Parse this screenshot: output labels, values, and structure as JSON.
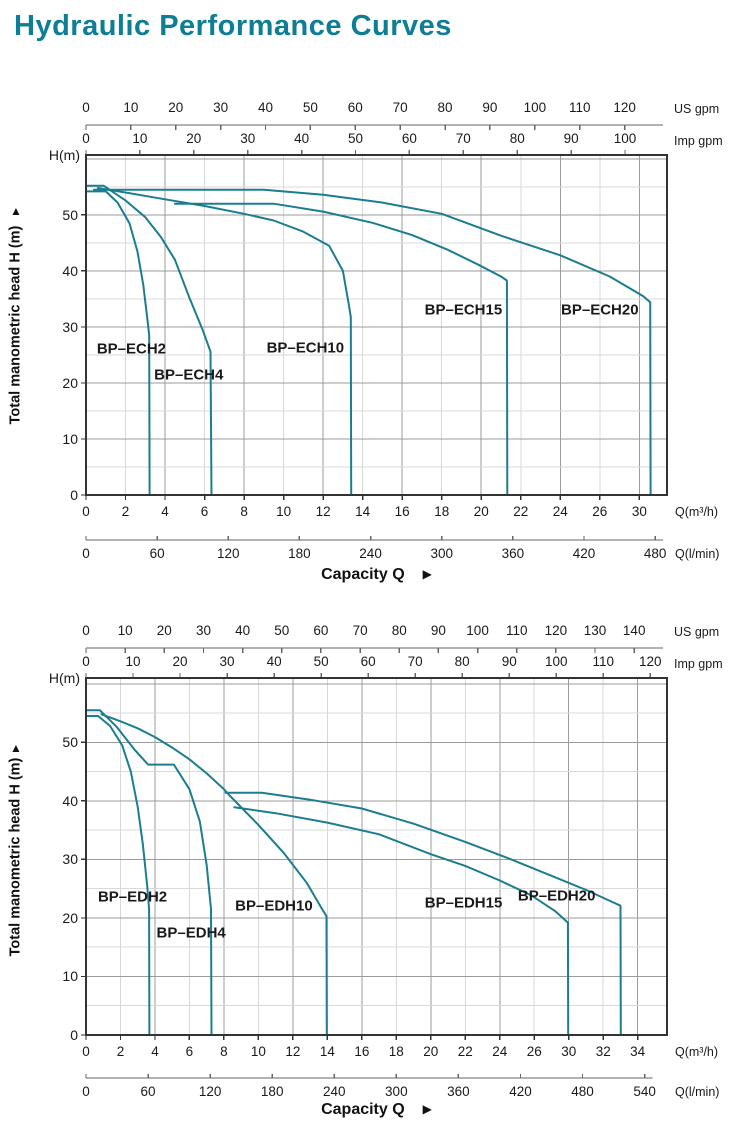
{
  "page": {
    "title": "Hydraulic Performance Curves"
  },
  "colors": {
    "title_accent": "#0e7e94",
    "curve": "#1b7d8f",
    "text": "#1a1a1a"
  },
  "chart_data": [
    {
      "type": "line",
      "name": "BP-ECH series",
      "y_axis_label": "Total manometric head H (m)",
      "h_label": "H(m)",
      "capacity_label": "Capacity Q",
      "xlim": [
        0,
        29.4
      ],
      "ylim": [
        0,
        60.7
      ],
      "y_ticks": [
        0,
        10,
        20,
        30,
        40,
        50
      ],
      "us_gpm": {
        "values": [
          0,
          10,
          20,
          30,
          40,
          50,
          60,
          70,
          80,
          90,
          100,
          110,
          120
        ],
        "unit": "US gpm"
      },
      "imp_gpm": {
        "values": [
          0,
          10,
          20,
          30,
          40,
          50,
          60,
          70,
          80,
          90,
          100
        ],
        "unit": "Imp gpm"
      },
      "m3h": {
        "labels": [
          "0",
          "2",
          "4",
          "6",
          "8",
          "10",
          "12",
          "14",
          "16",
          "18",
          "20",
          "22",
          "24",
          "26",
          "30"
        ],
        "unit": "Q(m³/h)"
      },
      "lmin": {
        "values": [
          0,
          60,
          120,
          180,
          240,
          300,
          360,
          420,
          480
        ],
        "unit": "Q(l/min)"
      },
      "curves": [
        {
          "label": "BP–ECH2",
          "label_pos": [
            2.3,
            26.0
          ],
          "points": [
            [
              0,
              54.2
            ],
            [
              1.0,
              54.2
            ],
            [
              1.6,
              52.2
            ],
            [
              2.2,
              48.5
            ],
            [
              2.6,
              43.5
            ],
            [
              2.9,
              37.5
            ],
            [
              3.1,
              31.5
            ],
            [
              3.2,
              28.5
            ],
            [
              3.22,
              0
            ]
          ]
        },
        {
          "label": "BP–ECH4",
          "label_pos": [
            5.2,
            21.5
          ],
          "points": [
            [
              0,
              55.2
            ],
            [
              0.9,
              55.2
            ],
            [
              2,
              52.6
            ],
            [
              3,
              49.6
            ],
            [
              3.8,
              46
            ],
            [
              4.5,
              42
            ],
            [
              5.2,
              35.5
            ],
            [
              5.9,
              29.5
            ],
            [
              6.3,
              25.6
            ],
            [
              6.35,
              0
            ]
          ]
        },
        {
          "label": "BP–ECH10",
          "label_pos": [
            11.1,
            26.3
          ],
          "points": [
            [
              0.6,
              54.8
            ],
            [
              2,
              54
            ],
            [
              4,
              52.8
            ],
            [
              6,
              51.6
            ],
            [
              8,
              50.2
            ],
            [
              9.5,
              49
            ],
            [
              11,
              47
            ],
            [
              12.3,
              44.5
            ],
            [
              13,
              40
            ],
            [
              13.3,
              34
            ],
            [
              13.4,
              31.8
            ],
            [
              13.42,
              0
            ]
          ]
        },
        {
          "label": "BP–ECH15",
          "label_pos": [
            19.1,
            33.0
          ],
          "points": [
            [
              4.5,
              52
            ],
            [
              9.5,
              52
            ],
            [
              12,
              50.6
            ],
            [
              14.5,
              48.6
            ],
            [
              16.5,
              46.4
            ],
            [
              18.3,
              43.8
            ],
            [
              19.8,
              41.2
            ],
            [
              21,
              39
            ],
            [
              21.3,
              38.3
            ],
            [
              21.32,
              0
            ]
          ]
        },
        {
          "label": "BP–ECH20",
          "label_pos": [
            26.0,
            33.0
          ],
          "points": [
            [
              0.4,
              54.5
            ],
            [
              9,
              54.5
            ],
            [
              12,
              53.6
            ],
            [
              15,
              52.2
            ],
            [
              18,
              50.2
            ],
            [
              21,
              46.3
            ],
            [
              24,
              42.8
            ],
            [
              26.5,
              39
            ],
            [
              28.2,
              35.5
            ],
            [
              28.55,
              34.4
            ],
            [
              28.57,
              0
            ]
          ]
        }
      ]
    },
    {
      "type": "line",
      "name": "BP-EDH series",
      "y_axis_label": "Total manometric head H (m)",
      "h_label": "H(m)",
      "capacity_label": "Capacity Q",
      "xlim": [
        0,
        33.7
      ],
      "ylim": [
        0,
        61.0
      ],
      "y_ticks": [
        0,
        10,
        20,
        30,
        40,
        50
      ],
      "us_gpm": {
        "values": [
          0,
          10,
          20,
          30,
          40,
          50,
          60,
          70,
          80,
          90,
          100,
          110,
          120,
          130,
          140
        ],
        "unit": "US gpm"
      },
      "imp_gpm": {
        "values": [
          0,
          10,
          20,
          30,
          40,
          50,
          60,
          70,
          80,
          90,
          100,
          110,
          120
        ],
        "unit": "Imp gpm"
      },
      "m3h": {
        "labels": [
          "0",
          "2",
          "4",
          "6",
          "8",
          "10",
          "12",
          "14",
          "16",
          "18",
          "20",
          "22",
          "24",
          "26",
          "30",
          "32",
          "34"
        ],
        "unit": "Q(m³/h)"
      },
      "lmin": {
        "values": [
          0,
          60,
          120,
          180,
          240,
          300,
          360,
          420,
          480,
          540
        ],
        "unit": "Q(l/min)"
      },
      "curves": [
        {
          "label": "BP–EDH2",
          "label_pos": [
            2.7,
            23.5
          ],
          "points": [
            [
              0,
              54.5
            ],
            [
              0.7,
              54.5
            ],
            [
              1.4,
              52.8
            ],
            [
              2.1,
              49.5
            ],
            [
              2.6,
              45
            ],
            [
              3.0,
              39
            ],
            [
              3.3,
              32.5
            ],
            [
              3.55,
              25.5
            ],
            [
              3.66,
              21.5
            ],
            [
              3.68,
              0
            ]
          ]
        },
        {
          "label": "BP–EDH4",
          "label_pos": [
            6.1,
            17.5
          ],
          "points": [
            [
              0,
              55.5
            ],
            [
              0.8,
              55.5
            ],
            [
              1.8,
              52.6
            ],
            [
              2.8,
              48.8
            ],
            [
              3.6,
              46.2
            ],
            [
              5.1,
              46.2
            ],
            [
              6,
              42
            ],
            [
              6.6,
              36.5
            ],
            [
              7.0,
              29
            ],
            [
              7.25,
              21.5
            ],
            [
              7.28,
              0
            ]
          ]
        },
        {
          "label": "BP–EDH10",
          "label_pos": [
            10.9,
            22.0
          ],
          "points": [
            [
              0.9,
              54.8
            ],
            [
              2,
              53.6
            ],
            [
              3,
              52.4
            ],
            [
              4,
              50.9
            ],
            [
              5,
              49.1
            ],
            [
              6,
              47.1
            ],
            [
              7,
              44.7
            ],
            [
              8,
              42
            ],
            [
              8.3,
              41
            ],
            [
              10,
              35.9
            ],
            [
              11.5,
              31
            ],
            [
              12.8,
              26
            ],
            [
              13.7,
              21.5
            ],
            [
              13.95,
              20.3
            ],
            [
              13.97,
              0
            ]
          ]
        },
        {
          "label": "BP–EDH15",
          "label_pos": [
            21.9,
            22.5
          ],
          "points": [
            [
              8.6,
              38.9
            ],
            [
              11,
              37.9
            ],
            [
              14,
              36.3
            ],
            [
              17,
              34.3
            ],
            [
              20,
              30.9
            ],
            [
              22,
              28.9
            ],
            [
              24,
              26.4
            ],
            [
              25.8,
              23.9
            ],
            [
              27.2,
              21.2
            ],
            [
              27.95,
              19.2
            ],
            [
              27.97,
              0
            ]
          ]
        },
        {
          "label": "BP–EDH20",
          "label_pos": [
            27.3,
            23.8
          ],
          "points": [
            [
              8.1,
              41.4
            ],
            [
              10.2,
              41.4
            ],
            [
              13,
              40.2
            ],
            [
              16,
              38.7
            ],
            [
              19,
              36.1
            ],
            [
              22,
              33
            ],
            [
              24.5,
              30.2
            ],
            [
              27,
              27.2
            ],
            [
              29,
              24.8
            ],
            [
              30.4,
              22.9
            ],
            [
              31.0,
              22.1
            ],
            [
              31.02,
              0
            ]
          ]
        }
      ]
    }
  ]
}
